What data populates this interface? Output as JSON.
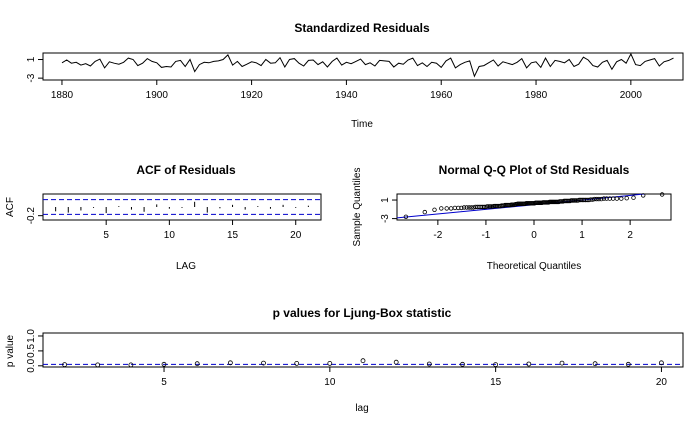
{
  "chart_data": [
    {
      "type": "line",
      "title": "Standardized Residuals",
      "xlabel": "Time",
      "ylabel": "",
      "xlim": [
        1876,
        2011
      ],
      "ylim": [
        -3.4,
        2.4
      ],
      "xticks": [
        "1880",
        "1900",
        "1920",
        "1940",
        "1960",
        "1980",
        "2000"
      ],
      "yticks": [
        "-3",
        "1"
      ],
      "x_start": 1880,
      "x_end": 2009,
      "series": [
        {
          "values": [
            0.3,
            0.9,
            0.2,
            0.4,
            -0.2,
            0.1,
            -0.4,
            0.6,
            1.1,
            -0.8,
            0.5,
            0.2,
            0.0,
            0.4,
            1.3,
            1.0,
            -0.3,
            0.2,
            1.2,
            0.6,
            0.3,
            -0.7,
            -0.5,
            -0.6,
            0.6,
            0.8,
            -0.5,
            1.0,
            -1.6,
            -0.1,
            0.4,
            0.3,
            0.6,
            0.7,
            1.0,
            2.0,
            -0.2,
            0.6,
            -0.5,
            0.0,
            0.5,
            0.3,
            -0.3,
            1.0,
            0.2,
            0.3,
            1.4,
            -0.6,
            1.0,
            1.2,
            0.2,
            -0.4,
            0.8,
            0.9,
            -0.1,
            0.5,
            -0.6,
            0.6,
            1.3,
            -0.2,
            0.4,
            0.1,
            0.6,
            1.1,
            -0.1,
            0.3,
            -0.4,
            0.8,
            0.7,
            0.6,
            -0.6,
            0.2,
            0.0,
            0.9,
            1.3,
            -0.3,
            0.3,
            -0.5,
            0.4,
            0.2,
            -0.7,
            0.7,
            1.3,
            -0.8,
            -0.1,
            0.4,
            0.7,
            -2.6,
            -0.5,
            -0.3,
            0.3,
            0.9,
            -0.4,
            0.5,
            0.2,
            -0.1,
            0.4,
            1.2,
            -0.8,
            0.3,
            0.5,
            -0.7,
            1.3,
            -0.5,
            0.8,
            0.6,
            0.3,
            1.0,
            -0.5,
            0.0,
            1.5,
            0.9,
            -0.3,
            -0.6,
            0.4,
            0.8,
            -1.1,
            0.5,
            1.0,
            0.2,
            2.2,
            -0.1,
            -0.3,
            0.6,
            0.9,
            1.2,
            -0.4,
            0.5,
            0.8,
            1.3
          ]
        }
      ]
    },
    {
      "type": "bar",
      "title": "ACF of Residuals",
      "xlabel": "LAG",
      "ylabel": "ACF",
      "xlim": [
        0,
        22
      ],
      "ylim": [
        -0.3,
        0.3
      ],
      "xticks": [
        "5",
        "10",
        "15",
        "20"
      ],
      "yticks": [
        "-0.2"
      ],
      "lags": [
        1,
        2,
        3,
        4,
        5,
        6,
        7,
        8,
        9,
        10,
        11,
        12,
        13,
        14,
        15,
        16,
        17,
        18,
        19,
        20,
        21
      ],
      "values": [
        -0.1,
        -0.13,
        -0.08,
        -0.02,
        -0.14,
        0.02,
        -0.06,
        -0.11,
        0.06,
        -0.04,
        -0.02,
        0.12,
        -0.13,
        -0.03,
        0.05,
        -0.06,
        0.02,
        -0.04,
        0.05,
        -0.02,
        0.03
      ],
      "band": 0.17
    },
    {
      "type": "scatter",
      "title": "Normal Q-Q Plot of Std Residuals",
      "xlabel": "Theoretical Quantiles",
      "ylabel": "Sample Quantiles",
      "xlim": [
        -2.85,
        2.85
      ],
      "ylim": [
        -3.3,
        2.3
      ],
      "xticks": [
        "-2",
        "-1",
        "0",
        "1",
        "2"
      ],
      "yticks": [
        "-3",
        "1"
      ],
      "line": {
        "intercept": 0.0,
        "slope": 1.0
      }
    },
    {
      "type": "scatter",
      "title": "p values for Ljung-Box statistic",
      "xlabel": "lag",
      "ylabel": "p value",
      "xlim": [
        1.35,
        20.65
      ],
      "ylim": [
        -0.04,
        1.1
      ],
      "xticks": [
        "5",
        "10",
        "15",
        "20"
      ],
      "yticks": [
        "0.0",
        "0.5",
        "1.0"
      ],
      "ref": 0.05,
      "x": [
        2,
        3,
        4,
        5,
        6,
        7,
        8,
        9,
        10,
        11,
        12,
        13,
        14,
        15,
        16,
        17,
        18,
        19,
        20
      ],
      "y": [
        0.04,
        0.03,
        0.03,
        0.05,
        0.07,
        0.1,
        0.09,
        0.08,
        0.08,
        0.17,
        0.12,
        0.06,
        0.05,
        0.04,
        0.06,
        0.09,
        0.07,
        0.05,
        0.1
      ]
    }
  ]
}
